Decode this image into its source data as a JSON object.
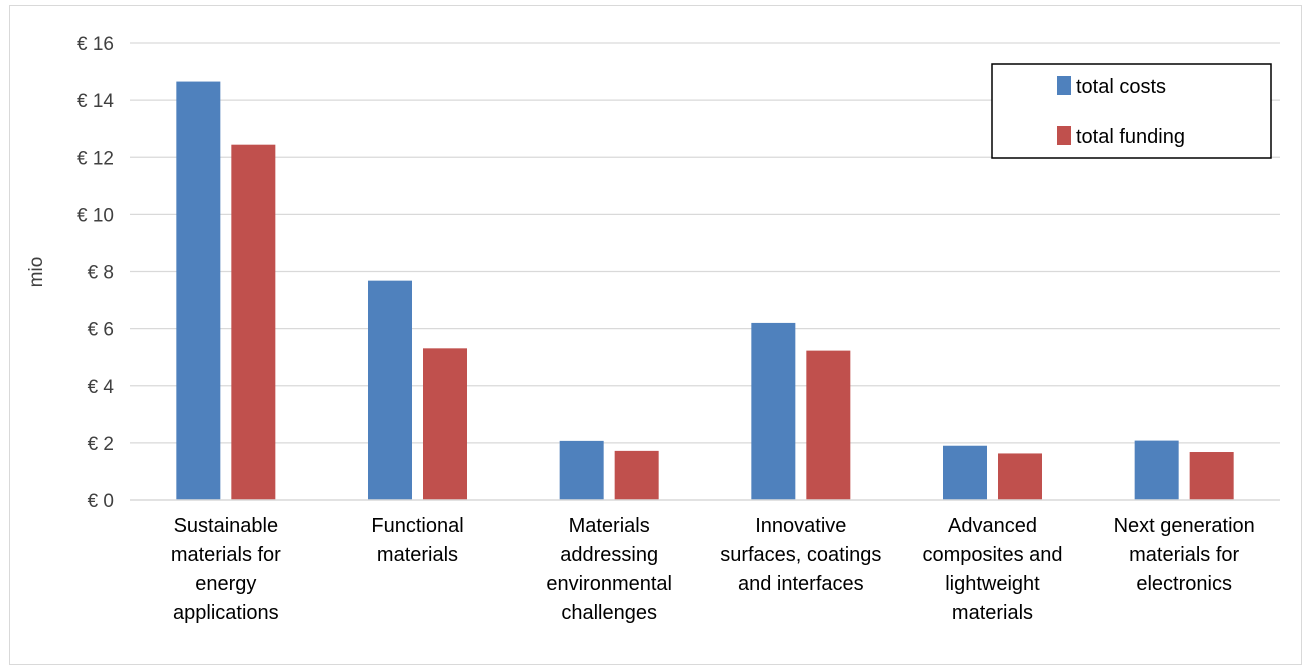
{
  "chart_data": {
    "type": "bar",
    "categories": [
      [
        "Sustainable",
        "materials for",
        "energy",
        "applications"
      ],
      [
        "Functional",
        "materials"
      ],
      [
        "Materials",
        "addressing",
        "environmental",
        "challenges"
      ],
      [
        "Innovative",
        "surfaces, coatings",
        "and interfaces"
      ],
      [
        "Advanced",
        "composites and",
        "lightweight",
        "materials"
      ],
      [
        "Next generation",
        "materials for",
        "electronics"
      ]
    ],
    "series": [
      {
        "name": "total costs",
        "color": "#4f81bd",
        "values": [
          14.65,
          7.68,
          2.07,
          6.2,
          1.9,
          2.08
        ]
      },
      {
        "name": "total funding",
        "color": "#c0504d",
        "values": [
          12.44,
          5.31,
          1.72,
          5.23,
          1.63,
          1.68
        ]
      }
    ],
    "title": "",
    "xlabel": "",
    "ylabel": "mio",
    "ylim": [
      0,
      16
    ],
    "yticks": [
      0,
      2,
      4,
      6,
      8,
      10,
      12,
      14,
      16
    ],
    "ytick_labels": [
      "€ 0",
      "€ 2",
      "€ 4",
      "€ 6",
      "€ 8",
      "€ 10",
      "€ 12",
      "€ 14",
      "€ 16"
    ],
    "grid": true,
    "legend_position": "top-right"
  }
}
